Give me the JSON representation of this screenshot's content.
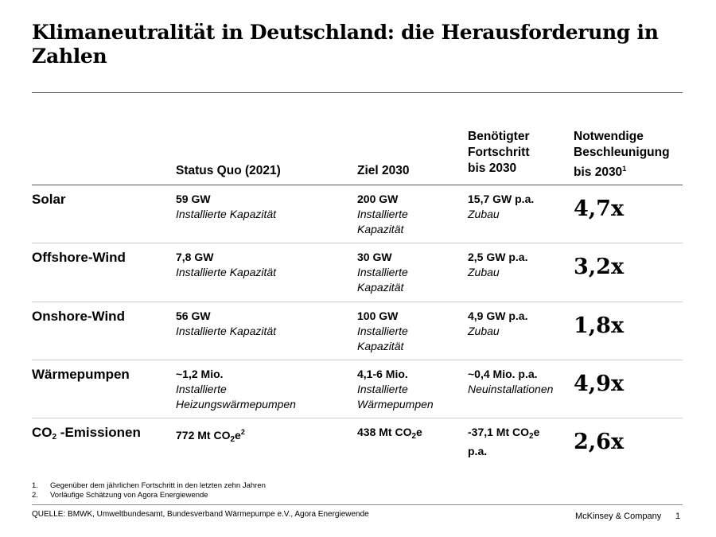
{
  "title": "Klimaneutralität in Deutschland: die Herausforderung in Zahlen",
  "headers": {
    "status": "Status Quo (2021)",
    "ziel": "Ziel 2030",
    "fortschritt": [
      "Benötigter",
      "Fortschritt",
      "bis 2030"
    ],
    "beschleunigung": [
      "Notwendige",
      "Beschleunigung",
      "bis 2030"
    ],
    "beschleunigung_sup": "1"
  },
  "rows": [
    {
      "label": "Solar",
      "status_v": "59 GW",
      "status_d": "Installierte Kapazität",
      "ziel_v": "200 GW",
      "ziel_d": "Installierte Kapazität",
      "fort_v": "15,7 GW p.a.",
      "fort_d": "Zubau",
      "accel": "4,7x"
    },
    {
      "label": "Offshore-Wind",
      "status_v": "7,8 GW",
      "status_d": "Installierte Kapazität",
      "ziel_v": "30 GW",
      "ziel_d": "Installierte Kapazität",
      "fort_v": "2,5 GW p.a.",
      "fort_d": "Zubau",
      "accel": "3,2x"
    },
    {
      "label": "Onshore-Wind",
      "status_v": "56 GW",
      "status_d": "Installierte Kapazität",
      "ziel_v": "100 GW",
      "ziel_d": "Installierte Kapazität",
      "fort_v": "4,9 GW p.a.",
      "fort_d": "Zubau",
      "accel": "1,8x"
    },
    {
      "label": "Wärmepumpen",
      "status_v": "~1,2 Mio.",
      "status_d": "Installierte Heizungswärmepumpen",
      "ziel_v": "4,1-6 Mio.",
      "ziel_d": "Installierte Wärmepumpen",
      "fort_v": "~0,4 Mio. p.a.",
      "fort_d": "Neuinstallationen",
      "accel": "4,9x"
    }
  ],
  "co2": {
    "label_a": "CO",
    "label_sub": "2",
    "label_b": " -Emissionen",
    "status_a": "772 Mt CO",
    "status_sub": "2",
    "status_b": "e",
    "status_sup": "2",
    "ziel_a": "438 Mt CO",
    "ziel_sub": "2",
    "ziel_b": "e",
    "fort_a": "-37,1 Mt CO",
    "fort_sub": "2",
    "fort_b": "e",
    "fort_c": "p.a.",
    "accel": "2,6x"
  },
  "footnotes": [
    {
      "n": "1.",
      "text": "Gegenüber dem jährlichen Fortschritt in den letzten zehn Jahren"
    },
    {
      "n": "2.",
      "text": "Vorläufige Schätzung von Agora Energiewende"
    }
  ],
  "source": "QUELLE: BMWK, Umweltbundesamt, Bundesverband Wärmepumpe e.V., Agora Energiewende",
  "brand": "McKinsey & Company",
  "page": "1"
}
